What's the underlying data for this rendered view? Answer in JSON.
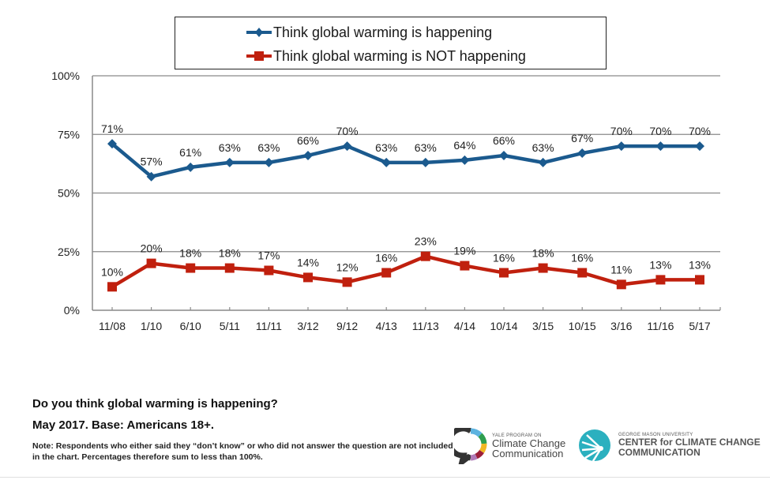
{
  "chart_data": {
    "type": "line",
    "title": "",
    "xlabel": "",
    "ylabel": "",
    "ylim": [
      0,
      100
    ],
    "yticks": [
      0,
      25,
      50,
      75,
      100
    ],
    "ytick_labels": [
      "0%",
      "25%",
      "50%",
      "75%",
      "100%"
    ],
    "grid": true,
    "legend_position": "top-center",
    "categories": [
      "11/08",
      "1/10",
      "6/10",
      "5/11",
      "11/11",
      "3/12",
      "9/12",
      "4/13",
      "11/13",
      "4/14",
      "10/14",
      "3/15",
      "10/15",
      "3/16",
      "11/16",
      "5/17"
    ],
    "series": [
      {
        "name": "Think global warming is happening",
        "color": "#1b5a8e",
        "marker": "diamond",
        "values": [
          71,
          57,
          61,
          63,
          63,
          66,
          70,
          63,
          63,
          64,
          66,
          63,
          67,
          70,
          70,
          70
        ],
        "labels": [
          "71%",
          "57%",
          "61%",
          "63%",
          "63%",
          "66%",
          "70%",
          "63%",
          "63%",
          "64%",
          "66%",
          "63%",
          "67%",
          "70%",
          "70%",
          "70%"
        ]
      },
      {
        "name": "Think global warming is NOT happening",
        "color": "#c0200e",
        "marker": "square",
        "values": [
          10,
          20,
          18,
          18,
          17,
          14,
          12,
          16,
          23,
          19,
          16,
          18,
          16,
          11,
          13,
          13
        ],
        "labels": [
          "10%",
          "20%",
          "18%",
          "18%",
          "17%",
          "14%",
          "12%",
          "16%",
          "23%",
          "19%",
          "16%",
          "18%",
          "16%",
          "11%",
          "13%",
          "13%"
        ]
      }
    ]
  },
  "legend": {
    "items": [
      {
        "label": "Think global warming is happening",
        "color": "#1b5a8e"
      },
      {
        "label": "Think global warming is NOT happening",
        "color": "#c0200e"
      }
    ]
  },
  "footer": {
    "question": "Do you think global warming is happening?",
    "base": "May 2017. Base: Americans 18+.",
    "note": "Note: Respondents who either said they “don’t know” or who did not answer the question are not included in the chart. Percentages therefore sum to less than 100%."
  },
  "logos": {
    "yale": {
      "small": "YALE PROGRAM ON",
      "line1": "Climate Change",
      "line2": "Communication"
    },
    "gmu": {
      "small": "GEORGE MASON UNIVERSITY",
      "line1": "CENTER for CLIMATE CHANGE",
      "line2": "COMMUNICATION",
      "color": "#2bb0bf"
    }
  }
}
